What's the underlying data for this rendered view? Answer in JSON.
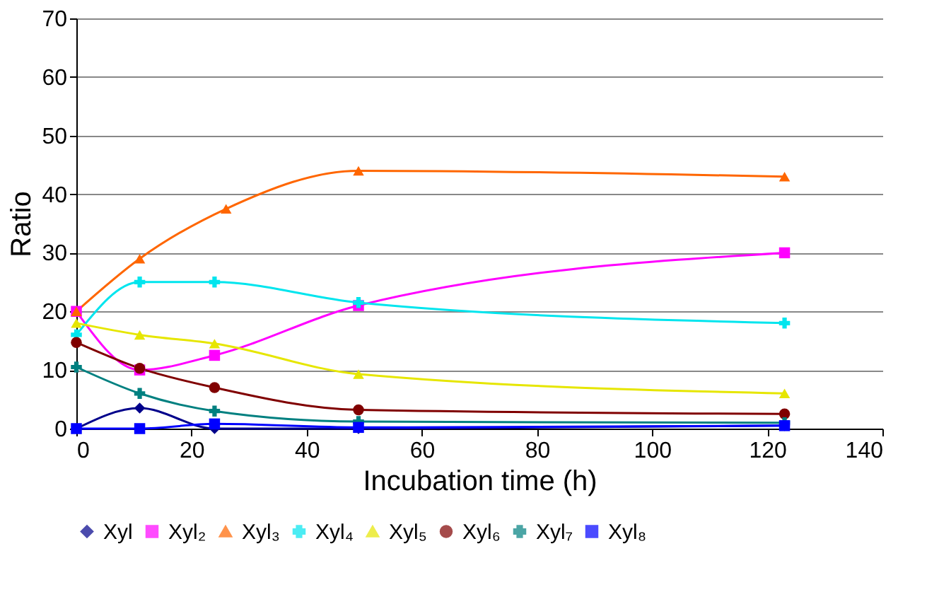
{
  "chart_data": {
    "type": "line",
    "xlabel": "Incubation time (h)",
    "ylabel": "Ratio",
    "xlim": [
      0,
      140
    ],
    "xticks": [
      0,
      20,
      40,
      60,
      80,
      100,
      120,
      140
    ],
    "ylim": [
      0,
      70
    ],
    "yticks": [
      0,
      10,
      20,
      30,
      40,
      50,
      60,
      70
    ],
    "grid": "y",
    "legend": "bottom",
    "series": [
      {
        "name": "Xyl",
        "color": "#00008b",
        "marker": "diamond",
        "x": [
          0,
          11,
          24,
          49,
          123
        ],
        "values": [
          0,
          3.5,
          0,
          0,
          0.5
        ]
      },
      {
        "name": "Xyl₂",
        "color": "#ff00ff",
        "marker": "square",
        "x": [
          0,
          11,
          24,
          49,
          123
        ],
        "values": [
          20,
          10,
          12.5,
          21,
          30
        ]
      },
      {
        "name": "Xyl₃",
        "color": "#ff6600",
        "marker": "triangle",
        "x": [
          0,
          11,
          26,
          49,
          123
        ],
        "values": [
          20,
          29,
          37.5,
          44,
          43
        ]
      },
      {
        "name": "Xyl₄",
        "color": "#00e5ee",
        "marker": "cross",
        "x": [
          0,
          11,
          24,
          49,
          123
        ],
        "values": [
          16,
          25,
          25,
          21.5,
          18
        ]
      },
      {
        "name": "Xyl₅",
        "color": "#e6e600",
        "marker": "triangle",
        "x": [
          0,
          11,
          24,
          49,
          123
        ],
        "values": [
          18,
          16,
          14.5,
          9.3,
          6
        ]
      },
      {
        "name": "Xyl₆",
        "color": "#800000",
        "marker": "circle",
        "x": [
          0,
          11,
          24,
          49,
          123
        ],
        "values": [
          14.7,
          10.3,
          7,
          3.2,
          2.5
        ]
      },
      {
        "name": "Xyl₇",
        "color": "#008080",
        "marker": "cross",
        "x": [
          0,
          11,
          24,
          49,
          123
        ],
        "values": [
          10.5,
          6,
          3,
          1.2,
          1
        ]
      },
      {
        "name": "Xyl₈",
        "color": "#0000ff",
        "marker": "square",
        "x": [
          0,
          11,
          24,
          49,
          123
        ],
        "values": [
          0,
          0,
          0.8,
          0.2,
          0.5
        ]
      }
    ]
  }
}
